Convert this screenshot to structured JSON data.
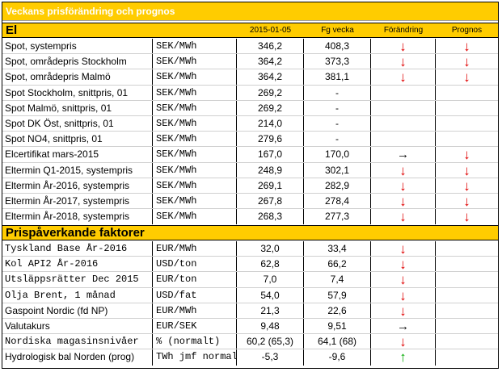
{
  "title": "Veckans prisförändring och prognos",
  "section_el": {
    "label": "El",
    "headers": {
      "date": "2015-01-05",
      "prev": "Fg vecka",
      "change": "Förändring",
      "forecast": "Prognos"
    }
  },
  "el_rows": [
    {
      "name": "Spot, systempris",
      "unit": "SEK/MWh",
      "v1": "346,2",
      "v2": "408,3",
      "change": "↓",
      "forecast": "↓"
    },
    {
      "name": "Spot, områdepris Stockholm",
      "unit": "SEK/MWh",
      "v1": "364,2",
      "v2": "373,3",
      "change": "↓",
      "forecast": "↓"
    },
    {
      "name": "Spot, områdepris Malmö",
      "unit": "SEK/MWh",
      "v1": "364,2",
      "v2": "381,1",
      "change": "↓",
      "forecast": "↓"
    },
    {
      "name": "Spot Stockholm, snittpris, 01",
      "unit": "SEK/MWh",
      "v1": "269,2",
      "v2": "-",
      "change": "",
      "forecast": ""
    },
    {
      "name": "Spot Malmö, snittpris, 01",
      "unit": "SEK/MWh",
      "v1": "269,2",
      "v2": "-",
      "change": "",
      "forecast": ""
    },
    {
      "name": "Spot DK Öst, snittpris, 01",
      "unit": "SEK/MWh",
      "v1": "214,0",
      "v2": "-",
      "change": "",
      "forecast": ""
    },
    {
      "name": "Spot NO4, snittpris, 01",
      "unit": "SEK/MWh",
      "v1": "279,6",
      "v2": "-",
      "change": "",
      "forecast": ""
    },
    {
      "name": "Elcertifikat mars-2015",
      "unit": "SEK/MWh",
      "v1": "167,0",
      "v2": "170,0",
      "change": "→",
      "forecast": "↓"
    },
    {
      "name": "Eltermin Q1-2015, systempris",
      "unit": "SEK/MWh",
      "v1": "248,9",
      "v2": "302,1",
      "change": "↓",
      "forecast": "↓"
    },
    {
      "name": "Eltermin År-2016, systempris",
      "unit": "SEK/MWh",
      "v1": "269,1",
      "v2": "282,9",
      "change": "↓",
      "forecast": "↓"
    },
    {
      "name": "Eltermin År-2017, systempris",
      "unit": "SEK/MWh",
      "v1": "267,8",
      "v2": "278,4",
      "change": "↓",
      "forecast": "↓"
    },
    {
      "name": "Eltermin År-2018, systempris",
      "unit": "SEK/MWh",
      "v1": "268,3",
      "v2": "277,3",
      "change": "↓",
      "forecast": "↓"
    }
  ],
  "section_factors": {
    "label": "Prispåverkande faktorer"
  },
  "factor_rows": [
    {
      "name": "Tyskland Base År-2016",
      "unit": "EUR/MWh",
      "v1": "32,0",
      "v2": "33,4",
      "change": "↓",
      "forecast": ""
    },
    {
      "name": "Kol API2 År-2016",
      "unit": "USD/ton",
      "v1": "62,8",
      "v2": "66,2",
      "change": "↓",
      "forecast": ""
    },
    {
      "name": "Utsläppsrätter Dec 2015",
      "unit": "EUR/ton",
      "v1": "7,0",
      "v2": "7,4",
      "change": "↓",
      "forecast": ""
    },
    {
      "name": "Olja Brent, 1 månad",
      "unit": "USD/fat",
      "v1": "54,0",
      "v2": "57,9",
      "change": "↓",
      "forecast": ""
    },
    {
      "name": "Gaspoint Nordic (fd NP)",
      "unit": "EUR/MWh",
      "v1": "21,3",
      "v2": "22,6",
      "change": "↓",
      "forecast": ""
    },
    {
      "name": "Valutakurs",
      "unit": "EUR/SEK",
      "v1": "9,48",
      "v2": "9,51",
      "change": "→",
      "forecast": ""
    },
    {
      "name": "Nordiska magasinsnivåer",
      "unit": "%  (normalt)",
      "v1": "60,2 (65,3)",
      "v2": "64,1 (68)",
      "change": "↓",
      "forecast": ""
    },
    {
      "name": "Hydrologisk bal Norden (prog)",
      "unit": "TWh jmf normalt",
      "v1": "-5,3",
      "v2": "-9,6",
      "change": "↑",
      "forecast": ""
    }
  ]
}
